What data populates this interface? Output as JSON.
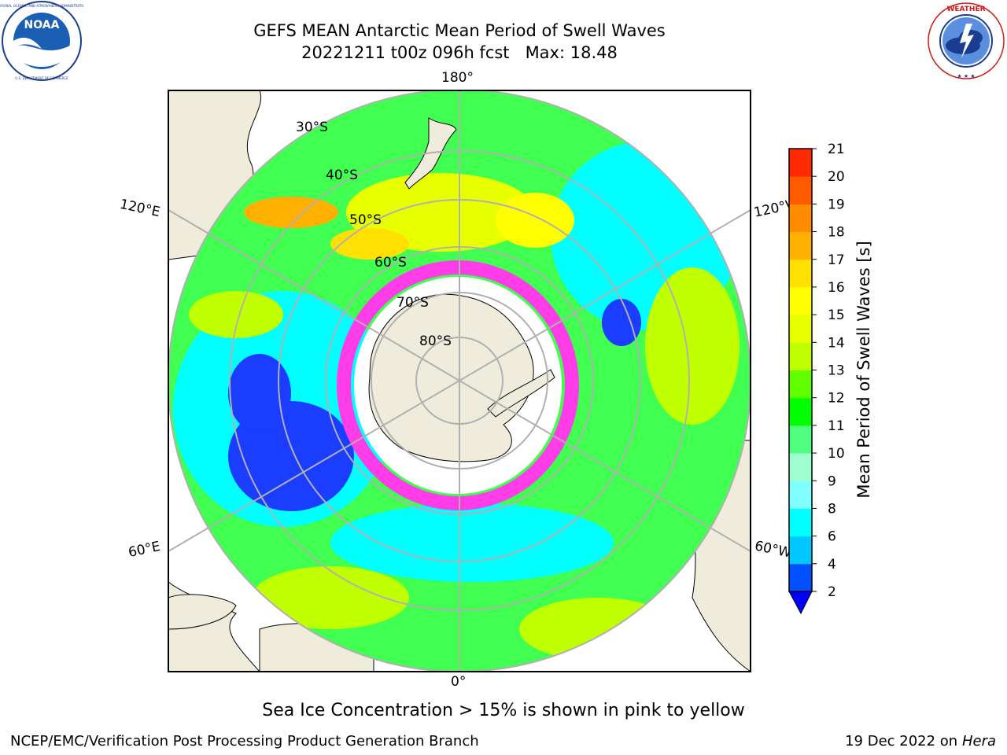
{
  "header": {
    "title_line1": "GEFS MEAN Antarctic Mean Period of Swell Waves",
    "title_line2": "20221211 t00z 096h fcst   Max: 18.48"
  },
  "logos": {
    "left": {
      "name": "noaa-logo",
      "text": "NOAA",
      "ring_text": "NATIONAL OCEANIC AND ATMOSPHERIC ADMINISTRATION · U.S. DEPARTMENT OF COMMERCE"
    },
    "right": {
      "name": "nws-logo",
      "ring_text": "NATIONAL WEATHER SERVICE"
    }
  },
  "map": {
    "projection": "south polar stereographic",
    "longitude_labels": [
      "180°",
      "120°E",
      "120°W",
      "60°E",
      "60°W",
      "0°"
    ],
    "latitude_labels": [
      "30°S",
      "40°S",
      "50°S",
      "60°S",
      "70°S",
      "80°S"
    ],
    "legend_position": "right",
    "grid": true
  },
  "colorbar": {
    "label": "Mean Period of Swell Waves [s]",
    "ticks": [
      "2",
      "4",
      "6",
      "8",
      "9",
      "10",
      "11",
      "12",
      "13",
      "14",
      "15",
      "16",
      "17",
      "18",
      "19",
      "20",
      "21"
    ],
    "colors": [
      "#0050ff",
      "#00c8ff",
      "#00ffff",
      "#80ffff",
      "#a0ffd0",
      "#50ff80",
      "#00ff00",
      "#60ff00",
      "#c0ff00",
      "#e8ff00",
      "#ffff00",
      "#ffe000",
      "#ffb000",
      "#ff8c00",
      "#ff5a00",
      "#ff2a00"
    ],
    "extend_color": "#0000ff",
    "max_color": "#ff0000"
  },
  "footer": {
    "note": "Sea Ice Concentration > 15% is shown in pink to yellow",
    "credit": "NCEP/EMC/Verification Post Processing Product Generation Branch",
    "date": "19 Dec 2022 on",
    "machine": "Hera"
  }
}
